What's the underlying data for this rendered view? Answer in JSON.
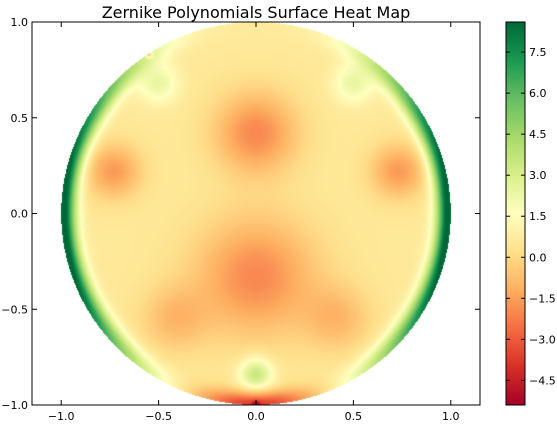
{
  "chart_data": {
    "type": "heatmap",
    "title": "Zernike Polynomials Surface Heat Map",
    "xlabel": "",
    "ylabel": "",
    "xlim": [
      -1.15,
      1.15
    ],
    "ylim": [
      -1.0,
      1.0
    ],
    "x_ticks": [
      {
        "value": -1.0,
        "label": "−1.0"
      },
      {
        "value": -0.5,
        "label": "−0.5"
      },
      {
        "value": 0.0,
        "label": "0.0"
      },
      {
        "value": 0.5,
        "label": "0.5"
      },
      {
        "value": 1.0,
        "label": "1.0"
      }
    ],
    "y_ticks": [
      {
        "value": 1.0,
        "label": "1.0"
      },
      {
        "value": 0.5,
        "label": "0.5"
      },
      {
        "value": 0.0,
        "label": "0.0"
      },
      {
        "value": -0.5,
        "label": "−0.5"
      },
      {
        "value": -1.0,
        "label": "−1.0"
      }
    ],
    "domain": "unit-disk",
    "colormap": "RdYlGn",
    "colormap_stops": [
      "#a50026",
      "#d73027",
      "#f46d43",
      "#fdae61",
      "#fee08b",
      "#ffffbf",
      "#d9ef8b",
      "#a6d96a",
      "#66bd63",
      "#1a9850",
      "#006837"
    ],
    "color_range": [
      -5.4,
      8.6
    ],
    "colorbar_ticks": [
      {
        "value": 7.5,
        "label": "7.5"
      },
      {
        "value": 6.0,
        "label": "6.0"
      },
      {
        "value": 4.5,
        "label": "4.5"
      },
      {
        "value": 3.0,
        "label": "3.0"
      },
      {
        "value": 1.5,
        "label": "1.5"
      },
      {
        "value": 0.0,
        "label": "0.0"
      },
      {
        "value": -1.5,
        "label": "−1.5"
      },
      {
        "value": -3.0,
        "label": "−3.0"
      },
      {
        "value": -4.5,
        "label": "−4.5"
      }
    ],
    "surface_components": [
      {
        "x": 0.0,
        "y": 0.42,
        "sigma": 0.15,
        "amp": -2.6
      },
      {
        "x": -0.73,
        "y": 0.22,
        "sigma": 0.1,
        "amp": -2.2
      },
      {
        "x": 0.73,
        "y": 0.22,
        "sigma": 0.1,
        "amp": -2.2
      },
      {
        "x": 0.0,
        "y": -0.33,
        "sigma": 0.22,
        "amp": -2.6
      },
      {
        "x": -0.42,
        "y": -0.55,
        "sigma": 0.12,
        "amp": -1.4
      },
      {
        "x": 0.42,
        "y": -0.55,
        "sigma": 0.12,
        "amp": -1.4
      },
      {
        "x": 0.0,
        "y": -0.84,
        "sigma": 0.06,
        "amp": 3.0
      },
      {
        "x": -0.5,
        "y": 0.68,
        "sigma": 0.07,
        "amp": 1.8
      },
      {
        "x": 0.5,
        "y": 0.68,
        "sigma": 0.07,
        "amp": 1.8
      },
      {
        "x": 0.0,
        "y": -1.0,
        "sigma": 0.012,
        "amp": -4.0
      },
      {
        "x": -0.55,
        "y": 0.83,
        "sigma": 0.012,
        "amp": -3.2
      }
    ],
    "surface_baseline": 0.6,
    "surface_rim": [
      {
        "angle_deg": 0,
        "amp": 8.0,
        "width": 30
      },
      {
        "angle_deg": 180,
        "amp": 8.0,
        "width": 30
      },
      {
        "angle_deg": 35,
        "amp": 4.0,
        "width": 25
      },
      {
        "angle_deg": 145,
        "amp": 4.0,
        "width": 25
      },
      {
        "angle_deg": 215,
        "amp": 4.5,
        "width": 25
      },
      {
        "angle_deg": 325,
        "amp": 4.5,
        "width": 25
      },
      {
        "angle_deg": 270,
        "amp": -4.5,
        "width": 18
      }
    ],
    "grid": false
  }
}
